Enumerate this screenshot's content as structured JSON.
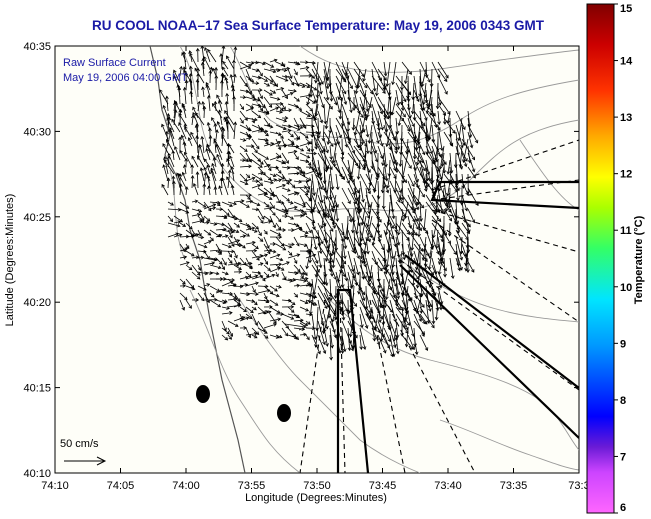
{
  "figure": {
    "title": "RU COOL  NOAA–17  Sea Surface Temperature:  May 19, 2006 0343 GMT",
    "overlay_label_1": "Raw Surface Current",
    "overlay_label_2": "May 19, 2006 04:00 GMT",
    "scale_label": "50 cm/s",
    "xlabel": "Longitude (Degrees:Minutes)",
    "ylabel": "Latitude (Degrees:Minutes)",
    "colorbar_label": "Temperature (°C)"
  },
  "chart_data": {
    "type": "map",
    "x_ticks": [
      "74:10",
      "74:05",
      "74:00",
      "73:55",
      "73:50",
      "73:45",
      "73:40",
      "73:35",
      "73:3"
    ],
    "y_ticks": [
      "40:35",
      "40:30",
      "40:25",
      "40:20",
      "40:15",
      "40:10"
    ],
    "colorbar": {
      "min": 6,
      "max": 15,
      "ticks": [
        "15",
        "14",
        "13",
        "12",
        "11",
        "10",
        "9",
        "8",
        "7",
        "6"
      ],
      "colors": [
        "#ff66ff",
        "#8a2be2",
        "#0000ff",
        "#0099ff",
        "#00e5ff",
        "#33ff66",
        "#aaff00",
        "#ffff00",
        "#ffaa00",
        "#ff3300",
        "#cc0000",
        "#800000"
      ]
    },
    "markers": "two filled black ovals near the coast"
  }
}
